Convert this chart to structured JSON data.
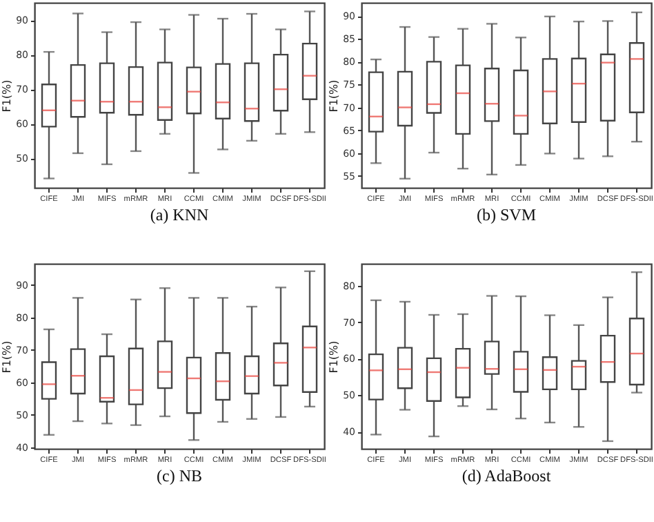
{
  "chart_data": [
    {
      "type": "box",
      "title": "(a) KNN",
      "ylabel": "F1(%)",
      "grid": false,
      "categories": [
        "CIFE",
        "JMI",
        "MIFS",
        "mRMR",
        "MRI",
        "CCMI",
        "CMIM",
        "JMIM",
        "DCSF",
        "DFS-SDII"
      ],
      "ylim": [
        41.5,
        95
      ],
      "yticks": [
        50,
        60,
        70,
        80,
        90
      ],
      "boxes": [
        {
          "low": 44.2,
          "q1": 59.2,
          "median": 63.9,
          "q3": 71.4,
          "high": 80.8
        },
        {
          "low": 51.5,
          "q1": 62,
          "median": 66.7,
          "q3": 77,
          "high": 91.9
        },
        {
          "low": 48.3,
          "q1": 63.2,
          "median": 66.4,
          "q3": 77.5,
          "high": 86.5
        },
        {
          "low": 52.1,
          "q1": 62.6,
          "median": 66.4,
          "q3": 76.4,
          "high": 89.4
        },
        {
          "low": 57.1,
          "q1": 61.1,
          "median": 64.8,
          "q3": 77.7,
          "high": 87.3
        },
        {
          "low": 45.8,
          "q1": 63,
          "median": 69.3,
          "q3": 76.3,
          "high": 91.5
        },
        {
          "low": 52.6,
          "q1": 61.5,
          "median": 66.2,
          "q3": 77.3,
          "high": 90.4
        },
        {
          "low": 55.1,
          "q1": 60.8,
          "median": 64.4,
          "q3": 77.5,
          "high": 91.8
        },
        {
          "low": 57.1,
          "q1": 63.8,
          "median": 70,
          "q3": 80,
          "high": 87.3
        },
        {
          "low": 57.6,
          "q1": 67.1,
          "median": 73.9,
          "q3": 83.2,
          "high": 92.5
        }
      ]
    },
    {
      "type": "box",
      "title": "(b) SVM",
      "ylabel": "F1(%)",
      "grid": false,
      "categories": [
        "CIFE",
        "JMI",
        "MIFS",
        "mRMR",
        "MRI",
        "CCMI",
        "CMIM",
        "JMIM",
        "DCSF",
        "DFS-SDII"
      ],
      "ylim": [
        52.4,
        92.9
      ],
      "yticks": [
        55,
        60,
        65,
        70,
        75,
        80,
        85,
        90
      ],
      "boxes": [
        {
          "low": 57.8,
          "q1": 64.7,
          "median": 68,
          "q3": 77.7,
          "high": 80.5
        },
        {
          "low": 54.4,
          "q1": 66,
          "median": 70,
          "q3": 77.8,
          "high": 87.6
        },
        {
          "low": 60.1,
          "q1": 68.8,
          "median": 70.7,
          "q3": 80,
          "high": 85.4
        },
        {
          "low": 56.6,
          "q1": 64.2,
          "median": 73.1,
          "q3": 79.2,
          "high": 87.2
        },
        {
          "low": 55.3,
          "q1": 67,
          "median": 70.8,
          "q3": 78.5,
          "high": 88.3
        },
        {
          "low": 57.4,
          "q1": 64.2,
          "median": 68.2,
          "q3": 78.1,
          "high": 85.3
        },
        {
          "low": 59.9,
          "q1": 66.5,
          "median": 73.5,
          "q3": 80.6,
          "high": 89.9
        },
        {
          "low": 58.8,
          "q1": 66.8,
          "median": 75.2,
          "q3": 80.7,
          "high": 88.8
        },
        {
          "low": 59.3,
          "q1": 67.1,
          "median": 79.8,
          "q3": 81.6,
          "high": 88.9
        },
        {
          "low": 62.5,
          "q1": 68.9,
          "median": 80.6,
          "q3": 84.1,
          "high": 90.8
        }
      ]
    },
    {
      "type": "box",
      "title": "(c) NB",
      "ylabel": "F1(%)",
      "grid": false,
      "categories": [
        "CIFE",
        "JMI",
        "MIFS",
        "mRMR",
        "MRI",
        "CCMI",
        "CMIM",
        "JMIM",
        "DCSF",
        "DFS-SDII"
      ],
      "ylim": [
        39.5,
        96.5
      ],
      "yticks": [
        40,
        50,
        60,
        70,
        80,
        90
      ],
      "boxes": [
        {
          "low": 43.8,
          "q1": 54.9,
          "median": 59.4,
          "q3": 66.2,
          "high": 76.3
        },
        {
          "low": 48,
          "q1": 56.5,
          "median": 62,
          "q3": 70.2,
          "high": 86
        },
        {
          "low": 47.3,
          "q1": 54,
          "median": 55.2,
          "q3": 68,
          "high": 74.8
        },
        {
          "low": 46.8,
          "q1": 53.2,
          "median": 57.6,
          "q3": 70.4,
          "high": 85.5
        },
        {
          "low": 49.5,
          "q1": 58.2,
          "median": 63.2,
          "q3": 72.6,
          "high": 89
        },
        {
          "low": 42.2,
          "q1": 50.5,
          "median": 61.2,
          "q3": 67.6,
          "high": 86
        },
        {
          "low": 47.8,
          "q1": 54.6,
          "median": 60.3,
          "q3": 69,
          "high": 86
        },
        {
          "low": 48.7,
          "q1": 56.5,
          "median": 61.9,
          "q3": 68,
          "high": 83.3
        },
        {
          "low": 49.3,
          "q1": 59,
          "median": 66,
          "q3": 72,
          "high": 89.2
        },
        {
          "low": 52.5,
          "q1": 57,
          "median": 70.7,
          "q3": 77.2,
          "high": 94.2
        }
      ]
    },
    {
      "type": "box",
      "title": "(d) AdaBoost",
      "ylabel": "F1(%)",
      "grid": false,
      "categories": [
        "CIFE",
        "JMI",
        "MIFS",
        "mRMR",
        "MRI",
        "CCMI",
        "CMIM",
        "JMIM",
        "DCSF",
        "DFS-SDII"
      ],
      "ylim": [
        35.3,
        86
      ],
      "yticks": [
        40,
        50,
        60,
        70,
        80
      ],
      "boxes": [
        {
          "low": 39.2,
          "q1": 48.8,
          "median": 56.8,
          "q3": 61.2,
          "high": 76
        },
        {
          "low": 46,
          "q1": 51.9,
          "median": 57.1,
          "q3": 63,
          "high": 75.6
        },
        {
          "low": 38.7,
          "q1": 48.4,
          "median": 56.3,
          "q3": 60.1,
          "high": 72
        },
        {
          "low": 47,
          "q1": 49.4,
          "median": 57.5,
          "q3": 62.7,
          "high": 72.2
        },
        {
          "low": 46.1,
          "q1": 55.8,
          "median": 57.2,
          "q3": 64.7,
          "high": 77.2
        },
        {
          "low": 43.6,
          "q1": 50.9,
          "median": 57.1,
          "q3": 61.9,
          "high": 77.1
        },
        {
          "low": 42.5,
          "q1": 51.6,
          "median": 56.9,
          "q3": 60.4,
          "high": 71.9
        },
        {
          "low": 41.3,
          "q1": 51.6,
          "median": 57.8,
          "q3": 59.4,
          "high": 69.2
        },
        {
          "low": 37.4,
          "q1": 53.6,
          "median": 59.1,
          "q3": 66.3,
          "high": 76.8
        },
        {
          "low": 50.7,
          "q1": 52.9,
          "median": 61.4,
          "q3": 71,
          "high": 83.7
        }
      ]
    }
  ]
}
